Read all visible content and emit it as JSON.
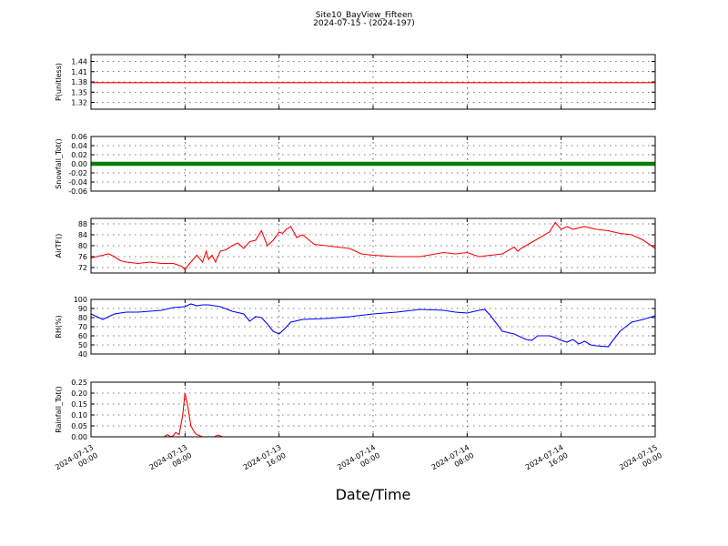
{
  "title": "Site10_BayView_Fifteen",
  "subtitle": "2024-07-15 - (2024-197)",
  "xlabel": "Date/Time",
  "x_ticks": [
    {
      "l1": "2024-07-13",
      "l2": "00:00"
    },
    {
      "l1": "2024-07-13",
      "l2": "08:00"
    },
    {
      "l1": "2024-07-13",
      "l2": "16:00"
    },
    {
      "l1": "2024-07-14",
      "l2": "00:00"
    },
    {
      "l1": "2024-07-14",
      "l2": "08:00"
    },
    {
      "l1": "2024-07-14",
      "l2": "16:00"
    },
    {
      "l1": "2024-07-15",
      "l2": "00:00"
    }
  ],
  "chart_data": [
    {
      "type": "line",
      "ylabel": "P(unitless)",
      "color": "#ff0000",
      "ylim": [
        1.3,
        1.46
      ],
      "yticks": [
        "1.44",
        "1.41",
        "1.38",
        "1.35",
        "1.32"
      ],
      "ytick_values": [
        1.44,
        1.41,
        1.38,
        1.35,
        1.32
      ],
      "x_hours": [
        0,
        48
      ],
      "y": [
        1.378,
        1.378
      ]
    },
    {
      "type": "scatter",
      "ylabel": "Snowfall_Tot()",
      "color": "#008000",
      "ylim": [
        -0.06,
        0.06
      ],
      "yticks": [
        "0.06",
        "0.04",
        "0.02",
        "0.00",
        "-0.02",
        "-0.04",
        "-0.06"
      ],
      "ytick_values": [
        0.06,
        0.04,
        0.02,
        0.0,
        -0.02,
        -0.04,
        -0.06
      ],
      "x_hours": [
        0,
        48
      ],
      "y": [
        0,
        0
      ]
    },
    {
      "type": "line",
      "ylabel": "AirTF()",
      "color": "#ff0000",
      "ylim": [
        70,
        90
      ],
      "yticks": [
        "88",
        "84",
        "80",
        "76",
        "72"
      ],
      "ytick_values": [
        88,
        84,
        80,
        76,
        72
      ],
      "x_hours": [
        0,
        1,
        1.5,
        2,
        2.5,
        3,
        4,
        5,
        6,
        7,
        7.7,
        8,
        8.3,
        8.6,
        9,
        9.5,
        9.8,
        10,
        10.3,
        10.6,
        11,
        11.5,
        12,
        12.5,
        13,
        13.5,
        14,
        14.5,
        15,
        15.5,
        16,
        16.3,
        16.6,
        17,
        17.5,
        18,
        19,
        20,
        21,
        22,
        23,
        24,
        26,
        28,
        30,
        31,
        32,
        33,
        34,
        35,
        36,
        36.3,
        36.6,
        37,
        38,
        39,
        39.5,
        40,
        40.5,
        41,
        42,
        43,
        44,
        45,
        46,
        47,
        48
      ],
      "y": [
        75.5,
        76.5,
        77,
        76,
        74.5,
        74,
        73.5,
        74,
        73.5,
        73.5,
        72.5,
        71.2,
        73,
        74.5,
        76.5,
        74,
        78,
        75,
        76.5,
        74,
        78,
        78.5,
        80,
        81,
        79,
        81.5,
        82,
        85.5,
        80,
        82,
        85,
        84.5,
        86,
        87,
        83,
        84,
        80.5,
        80,
        79.5,
        79,
        77,
        76.5,
        76,
        76,
        77.5,
        77,
        77.5,
        76,
        76.5,
        77,
        79.5,
        78,
        79,
        80,
        82.5,
        85,
        88.5,
        86,
        87,
        86,
        87,
        86,
        85.5,
        84.5,
        84,
        82,
        79
      ]
    },
    {
      "type": "line",
      "ylabel": "RH(%)",
      "color": "#0000ff",
      "ylim": [
        40,
        100
      ],
      "yticks": [
        "100",
        "90",
        "80",
        "70",
        "60",
        "50",
        "40"
      ],
      "ytick_values": [
        100,
        90,
        80,
        70,
        60,
        50,
        40
      ],
      "x_hours": [
        0,
        1,
        2,
        3,
        4,
        5,
        6,
        7,
        8,
        8.5,
        9,
        9.5,
        10,
        11,
        12,
        13,
        13.5,
        14,
        14.5,
        15,
        15.5,
        16,
        16.5,
        17,
        18,
        20,
        22,
        24,
        26,
        28,
        30,
        31,
        32,
        33,
        33.5,
        34,
        35,
        36,
        37,
        37.5,
        38,
        39,
        39.5,
        40,
        40.5,
        41,
        41.5,
        42,
        42.5,
        43,
        44,
        45,
        46,
        47,
        48
      ],
      "y": [
        84,
        78,
        84,
        86,
        86,
        87,
        88,
        91,
        92,
        95,
        93,
        94,
        94,
        92,
        87,
        84,
        76,
        81,
        80,
        73,
        65,
        62,
        68,
        75,
        78,
        79,
        81,
        84,
        86,
        89,
        88,
        86,
        85,
        88,
        89,
        82,
        65,
        62,
        56,
        55,
        60,
        60,
        58,
        55,
        53,
        56,
        51,
        54,
        50,
        49,
        48,
        65,
        75,
        78,
        82
      ]
    },
    {
      "type": "line",
      "ylabel": "Rainfall_Tot()",
      "color": "#ff0000",
      "ylim": [
        0,
        0.25
      ],
      "yticks": [
        "0.25",
        "0.20",
        "0.15",
        "0.10",
        "0.05",
        "0.00"
      ],
      "ytick_values": [
        0.25,
        0.2,
        0.15,
        0.1,
        0.05,
        0.0
      ],
      "x_hours": [
        0,
        6.2,
        6.5,
        6.8,
        7.0,
        7.2,
        7.5,
        7.8,
        8.0,
        8.2,
        8.5,
        8.8,
        9.0,
        9.5,
        10.0,
        10.5,
        10.8,
        11.2,
        11.6,
        48
      ],
      "y": [
        0,
        0,
        0.01,
        0,
        0.005,
        0.02,
        0.01,
        0.1,
        0.2,
        0.15,
        0.05,
        0.02,
        0.01,
        0,
        0,
        0,
        0.008,
        0,
        0,
        0
      ]
    }
  ]
}
